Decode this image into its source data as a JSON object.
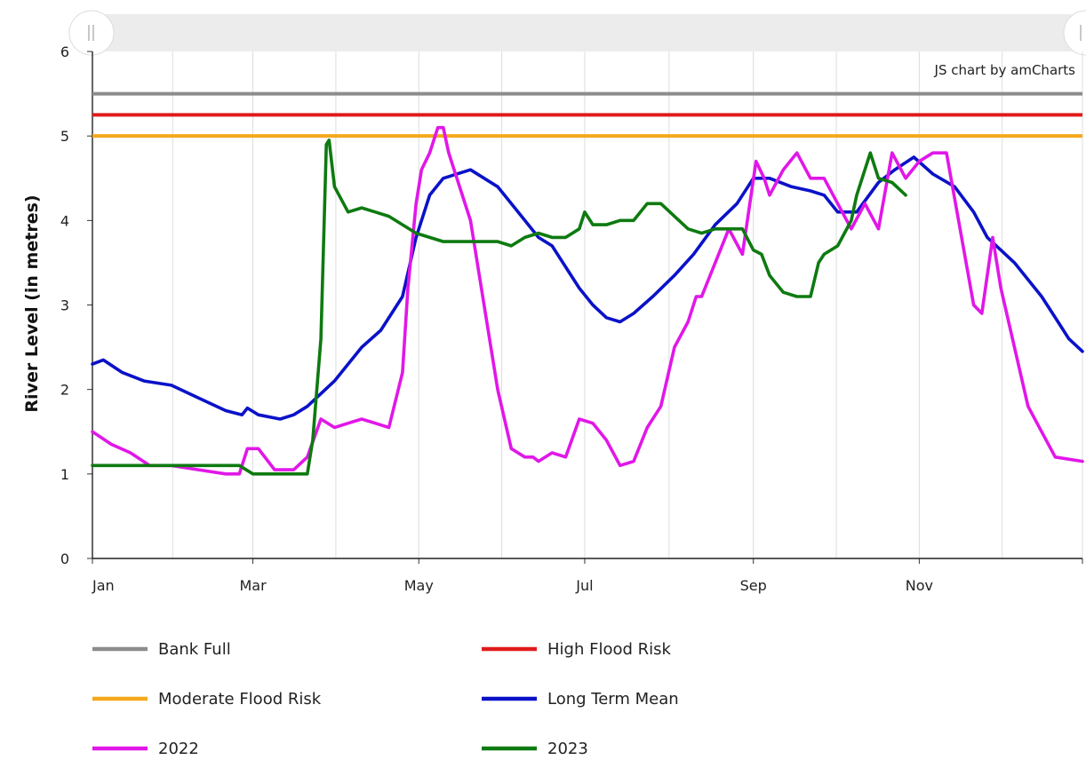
{
  "chart_data": {
    "type": "line",
    "title": "",
    "xlabel": "",
    "ylabel": "River Level (in metres)",
    "credit": "JS chart by amCharts",
    "ylim": [
      0,
      6
    ],
    "y_ticks": [
      0,
      1,
      2,
      3,
      4,
      5,
      6
    ],
    "x_ticks": [
      "Jan",
      "Mar",
      "May",
      "Jul",
      "Sep",
      "Nov"
    ],
    "x_tick_days": [
      1,
      60,
      121,
      182,
      244,
      305
    ],
    "x_range_days": [
      1,
      365
    ],
    "grid": true,
    "legend_position": "bottom",
    "thresholds": [
      {
        "name": "Bank Full",
        "value": 5.5,
        "color": "#8c8c8c"
      },
      {
        "name": "High Flood Risk",
        "value": 5.25,
        "color": "#e01b1b"
      },
      {
        "name": "Moderate Flood Risk",
        "value": 5.0,
        "color": "#f5a81c"
      }
    ],
    "series": [
      {
        "name": "Long Term Mean",
        "color": "#0a12c8",
        "x": [
          1,
          5,
          12,
          20,
          30,
          40,
          50,
          56,
          58,
          62,
          70,
          75,
          80,
          90,
          100,
          107,
          115,
          120,
          125,
          130,
          140,
          150,
          160,
          165,
          170,
          180,
          185,
          190,
          195,
          200,
          207,
          215,
          222,
          230,
          238,
          244,
          250,
          258,
          265,
          270,
          275,
          282,
          290,
          296,
          303,
          310,
          318,
          325,
          330,
          340,
          350,
          356,
          360,
          365
        ],
        "y": [
          2.3,
          2.35,
          2.2,
          2.1,
          2.05,
          1.9,
          1.75,
          1.7,
          1.78,
          1.7,
          1.65,
          1.7,
          1.8,
          2.1,
          2.5,
          2.7,
          3.1,
          3.8,
          4.3,
          4.5,
          4.6,
          4.4,
          4.0,
          3.8,
          3.7,
          3.2,
          3.0,
          2.85,
          2.8,
          2.9,
          3.1,
          3.35,
          3.6,
          3.95,
          4.2,
          4.5,
          4.5,
          4.4,
          4.35,
          4.3,
          4.1,
          4.1,
          4.45,
          4.6,
          4.75,
          4.55,
          4.4,
          4.1,
          3.8,
          3.5,
          3.1,
          2.8,
          2.6,
          2.45
        ]
      },
      {
        "name": "2022",
        "color": "#e117e8",
        "x": [
          1,
          8,
          15,
          22,
          30,
          40,
          50,
          55,
          58,
          62,
          68,
          70,
          75,
          80,
          85,
          90,
          95,
          100,
          105,
          110,
          115,
          117,
          120,
          122,
          125,
          128,
          130,
          132,
          135,
          140,
          145,
          150,
          155,
          160,
          163,
          165,
          170,
          175,
          180,
          185,
          190,
          195,
          200,
          205,
          210,
          215,
          220,
          223,
          225,
          230,
          235,
          240,
          245,
          248,
          250,
          255,
          260,
          265,
          270,
          275,
          280,
          285,
          290,
          295,
          300,
          305,
          310,
          315,
          320,
          325,
          328,
          332,
          335,
          340,
          345,
          350,
          355,
          365
        ],
        "y": [
          1.5,
          1.35,
          1.25,
          1.1,
          1.1,
          1.05,
          1.0,
          1.0,
          1.3,
          1.3,
          1.05,
          1.05,
          1.05,
          1.2,
          1.65,
          1.55,
          1.6,
          1.65,
          1.6,
          1.55,
          2.2,
          3.2,
          4.2,
          4.6,
          4.8,
          5.1,
          5.1,
          4.8,
          4.5,
          4.0,
          3.0,
          2.0,
          1.3,
          1.2,
          1.2,
          1.15,
          1.25,
          1.2,
          1.65,
          1.6,
          1.4,
          1.1,
          1.15,
          1.55,
          1.8,
          2.5,
          2.8,
          3.1,
          3.1,
          3.5,
          3.9,
          3.6,
          4.7,
          4.5,
          4.3,
          4.6,
          4.8,
          4.5,
          4.5,
          4.2,
          3.9,
          4.2,
          3.9,
          4.8,
          4.5,
          4.7,
          4.8,
          4.8,
          3.9,
          3.0,
          2.9,
          3.8,
          3.2,
          2.5,
          1.8,
          1.5,
          1.2,
          1.15
        ]
      },
      {
        "name": "2023",
        "color": "#0e7a10",
        "x": [
          1,
          15,
          30,
          40,
          50,
          55,
          60,
          68,
          75,
          80,
          82,
          85,
          87,
          88,
          90,
          95,
          100,
          105,
          110,
          115,
          120,
          125,
          130,
          140,
          150,
          155,
          160,
          165,
          170,
          175,
          180,
          182,
          185,
          190,
          195,
          200,
          205,
          210,
          215,
          220,
          225,
          230,
          235,
          240,
          244,
          247,
          250,
          255,
          260,
          265,
          268,
          270,
          275,
          280,
          282,
          285,
          287,
          290,
          295,
          300
        ],
        "y": [
          1.1,
          1.1,
          1.1,
          1.1,
          1.1,
          1.1,
          1.0,
          1.0,
          1.0,
          1.0,
          1.4,
          2.6,
          4.9,
          4.95,
          4.4,
          4.1,
          4.15,
          4.1,
          4.05,
          3.95,
          3.85,
          3.8,
          3.75,
          3.75,
          3.75,
          3.7,
          3.8,
          3.85,
          3.8,
          3.8,
          3.9,
          4.1,
          3.95,
          3.95,
          4.0,
          4.0,
          4.2,
          4.2,
          4.05,
          3.9,
          3.85,
          3.9,
          3.9,
          3.9,
          3.65,
          3.6,
          3.35,
          3.15,
          3.1,
          3.1,
          3.5,
          3.6,
          3.7,
          4.0,
          4.3,
          4.6,
          4.8,
          4.5,
          4.45,
          4.3
        ]
      }
    ]
  }
}
